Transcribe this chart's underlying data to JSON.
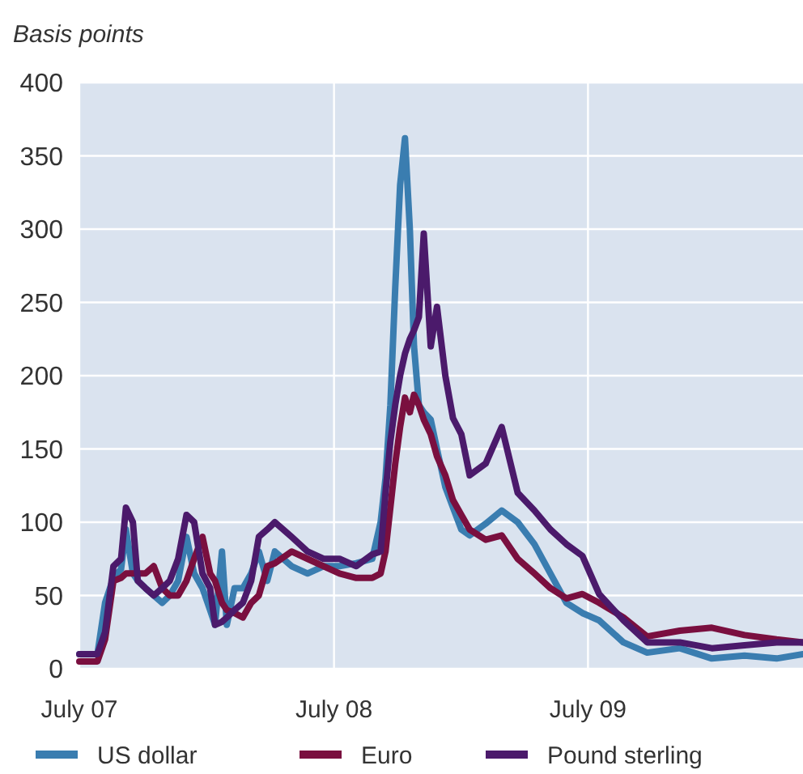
{
  "chart_data": {
    "type": "line",
    "ylabel": "Basis points",
    "x": [
      "2007-07-01",
      "2007-07-27",
      "2007-08-07",
      "2007-08-19",
      "2007-08-30",
      "2007-09-06",
      "2007-09-16",
      "2007-09-23",
      "2007-10-04",
      "2007-10-16",
      "2007-10-28",
      "2007-11-08",
      "2007-11-20",
      "2007-12-02",
      "2007-12-13",
      "2007-12-25",
      "2008-01-05",
      "2008-01-12",
      "2008-01-22",
      "2008-01-29",
      "2008-02-09",
      "2008-02-21",
      "2008-03-04",
      "2008-03-15",
      "2008-03-27",
      "2008-04-07",
      "2008-05-01",
      "2008-05-24",
      "2008-06-16",
      "2008-07-09",
      "2008-08-02",
      "2008-08-25",
      "2008-09-06",
      "2008-09-13",
      "2008-09-20",
      "2008-09-27",
      "2008-10-04",
      "2008-10-11",
      "2008-10-18",
      "2008-10-24",
      "2008-10-31",
      "2008-11-07",
      "2008-11-17",
      "2008-11-26",
      "2008-12-08",
      "2008-12-19",
      "2008-12-31",
      "2009-01-12",
      "2009-02-04",
      "2009-02-27",
      "2009-03-22",
      "2009-04-15",
      "2009-05-08",
      "2009-05-31",
      "2009-06-23",
      "2009-07-17",
      "2009-08-21",
      "2009-09-24",
      "2009-11-10",
      "2009-12-26",
      "2010-02-11",
      "2010-03-29",
      "2010-05-06"
    ],
    "series": [
      {
        "name": "US dollar",
        "color": "#3a7db0",
        "values": [
          10,
          10,
          45,
          62,
          68,
          95,
          65,
          60,
          55,
          50,
          45,
          50,
          60,
          90,
          65,
          55,
          40,
          30,
          80,
          30,
          55,
          55,
          65,
          80,
          60,
          80,
          70,
          65,
          70,
          70,
          72,
          75,
          100,
          130,
          180,
          260,
          330,
          362,
          300,
          220,
          180,
          175,
          170,
          150,
          124,
          110,
          95,
          91,
          99,
          108,
          100,
          85,
          65,
          45,
          38,
          33,
          18,
          11,
          14,
          7,
          9,
          7,
          10
        ]
      },
      {
        "name": "Euro",
        "color": "#7a0f3f",
        "values": [
          5,
          5,
          20,
          60,
          62,
          65,
          65,
          65,
          65,
          70,
          55,
          50,
          50,
          60,
          75,
          90,
          65,
          60,
          45,
          40,
          38,
          35,
          45,
          50,
          70,
          72,
          80,
          75,
          70,
          65,
          62,
          62,
          65,
          80,
          110,
          140,
          165,
          185,
          175,
          187,
          180,
          170,
          160,
          145,
          132,
          115,
          105,
          95,
          88,
          91,
          75,
          65,
          55,
          48,
          51,
          45,
          35,
          22,
          26,
          28,
          23,
          20,
          18
        ]
      },
      {
        "name": "Pound sterling",
        "color": "#4b1a6b",
        "values": [
          10,
          10,
          25,
          70,
          75,
          110,
          100,
          60,
          55,
          50,
          55,
          60,
          75,
          105,
          100,
          65,
          55,
          30,
          32,
          35,
          40,
          45,
          60,
          90,
          95,
          100,
          90,
          80,
          75,
          75,
          70,
          78,
          80,
          120,
          155,
          180,
          200,
          215,
          225,
          231,
          240,
          297,
          220,
          247,
          200,
          171,
          160,
          132,
          140,
          165,
          120,
          108,
          95,
          85,
          77,
          51,
          33,
          18,
          18,
          14,
          16,
          18,
          18
        ]
      }
    ],
    "xlim": [
      "2007-07-01",
      "2010-05-06"
    ],
    "xticks": [
      {
        "value": "2007-07-01",
        "label": "July 07"
      },
      {
        "value": "2008-07-01",
        "label": "July 08"
      },
      {
        "value": "2009-07-01",
        "label": "July 09"
      }
    ],
    "ylim": [
      0,
      400
    ],
    "yticks": [
      0,
      50,
      100,
      150,
      200,
      250,
      300,
      350,
      400
    ],
    "grid": true,
    "legend": "bottom",
    "line_style": "solid"
  }
}
